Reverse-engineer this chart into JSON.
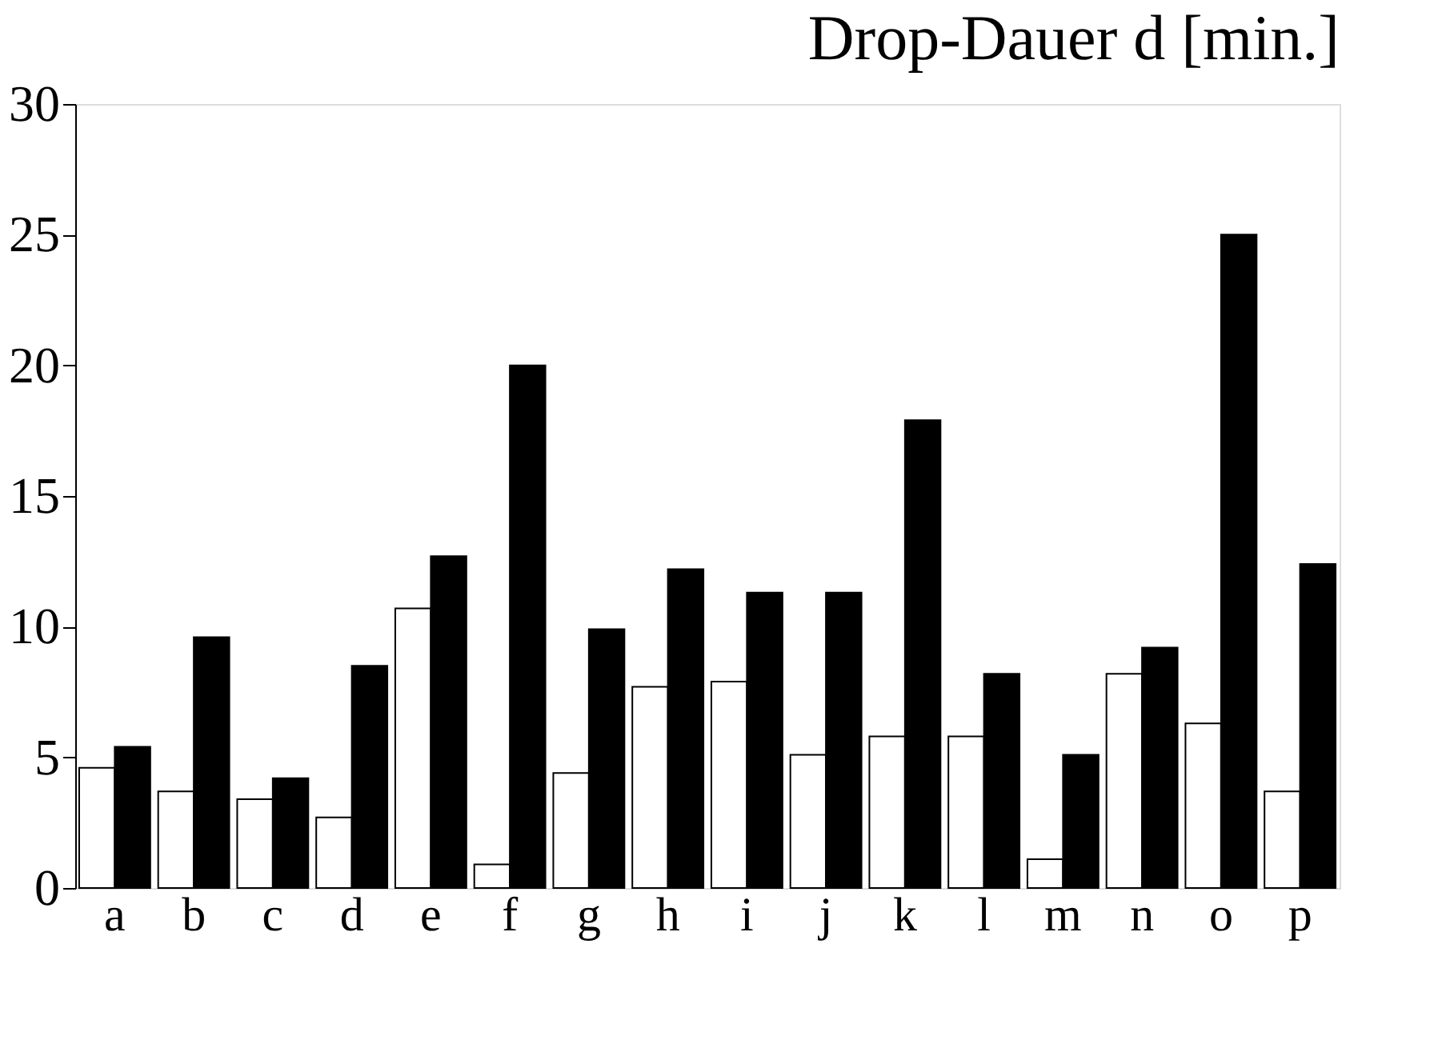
{
  "chart_data": {
    "type": "bar",
    "title": "Drop-Dauer d [min.]",
    "categories": [
      "a",
      "b",
      "c",
      "d",
      "e",
      "f",
      "g",
      "h",
      "i",
      "j",
      "k",
      "l",
      "m",
      "n",
      "o",
      "p"
    ],
    "series": [
      {
        "color": "#ffffff",
        "values": [
          4.6,
          3.7,
          3.4,
          2.7,
          10.7,
          0.9,
          4.4,
          7.7,
          7.9,
          5.1,
          5.8,
          5.8,
          1.1,
          8.2,
          6.3,
          3.7
        ]
      },
      {
        "color": "#000000",
        "values": [
          5.4,
          9.6,
          4.2,
          8.5,
          12.7,
          20,
          9.9,
          12.2,
          11.3,
          11.3,
          17.9,
          8.2,
          5.1,
          9.2,
          25,
          12.4
        ]
      }
    ],
    "ylim": [
      0,
      30
    ],
    "yticks": [
      0,
      5,
      10,
      15,
      20,
      25,
      30
    ],
    "grid": false,
    "legend": false
  }
}
